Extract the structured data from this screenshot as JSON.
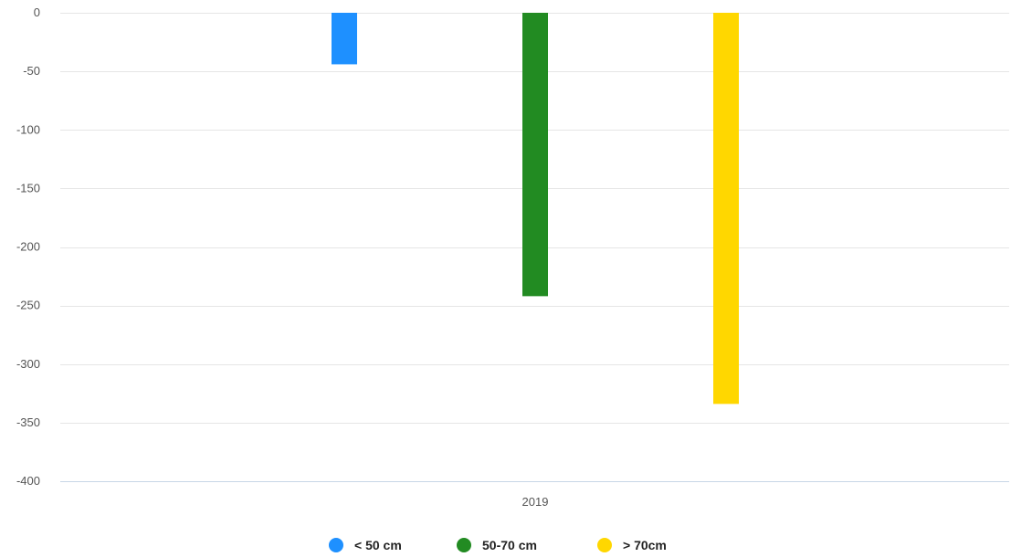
{
  "chart_data": {
    "type": "bar",
    "categories": [
      "2019"
    ],
    "series": [
      {
        "name": "< 50 cm",
        "values": [
          -44
        ],
        "color": "#1E90FF"
      },
      {
        "name": "50-70 cm",
        "values": [
          -242
        ],
        "color": "#228B22"
      },
      {
        "name": "> 70cm",
        "values": [
          -334
        ],
        "color": "#FFD700"
      }
    ],
    "ylim": [
      -400,
      0
    ],
    "yticks": [
      0,
      -50,
      -100,
      -150,
      -200,
      -250,
      -300,
      -350,
      -400
    ],
    "grid": true,
    "legend_position": "bottom-center",
    "title": "",
    "xlabel": "",
    "ylabel": ""
  }
}
